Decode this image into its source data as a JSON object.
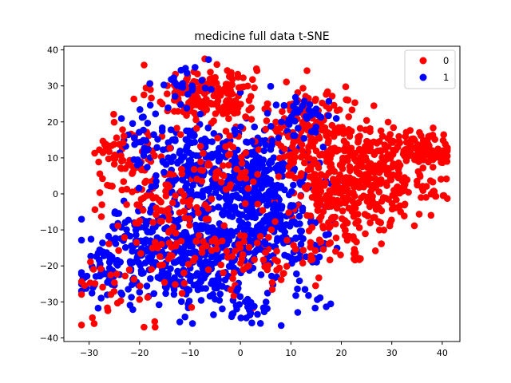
{
  "chart_data": {
    "type": "scatter",
    "title": "medicine full data t-SNE",
    "xlabel": "",
    "ylabel": "",
    "xlim": [
      -35,
      43.5
    ],
    "ylim": [
      -41,
      41
    ],
    "xticks": [
      -30,
      -20,
      -10,
      0,
      10,
      20,
      30,
      40
    ],
    "yticks": [
      -40,
      -30,
      -20,
      -10,
      0,
      10,
      20,
      30,
      40
    ],
    "grid": false,
    "legend_position": "top-right",
    "series": [
      {
        "name": "0",
        "color": "#ff0000",
        "clusters": [
          {
            "cx": -7,
            "cy": 28,
            "sx": 5,
            "sy": 4,
            "n": 190
          },
          {
            "cx": 14,
            "cy": 18,
            "sx": 6,
            "sy": 6,
            "n": 150
          },
          {
            "cx": 25,
            "cy": 5,
            "sx": 6,
            "sy": 7,
            "n": 300
          },
          {
            "cx": 34,
            "cy": 12,
            "sx": 3,
            "sy": 2.5,
            "n": 80
          },
          {
            "cx": 39,
            "cy": 12,
            "sx": 1.5,
            "sy": 2.5,
            "n": 40
          },
          {
            "cx": 38,
            "cy": 1,
            "sx": 2,
            "sy": 1.5,
            "n": 15
          },
          {
            "cx": 16,
            "cy": 2,
            "sx": 4,
            "sy": 7,
            "n": 110
          },
          {
            "cx": -20,
            "cy": 5,
            "sx": 4,
            "sy": 7,
            "n": 80
          },
          {
            "cx": -12,
            "cy": -10,
            "sx": 6,
            "sy": 8,
            "n": 90
          },
          {
            "cx": -22,
            "cy": -25,
            "sx": 5,
            "sy": 5,
            "n": 35
          },
          {
            "cx": 3,
            "cy": -18,
            "sx": 6,
            "sy": 6,
            "n": 60
          },
          {
            "cx": -3,
            "cy": 8,
            "sx": 4,
            "sy": 5,
            "n": 40
          },
          {
            "cx": 22,
            "cy": -12,
            "sx": 4,
            "sy": 4,
            "n": 35
          },
          {
            "cx": -26,
            "cy": 12,
            "sx": 2,
            "sy": 4,
            "n": 25
          }
        ]
      },
      {
        "name": "1",
        "color": "#0000ff",
        "clusters": [
          {
            "cx": 2,
            "cy": 0,
            "sx": 6,
            "sy": 9,
            "n": 420
          },
          {
            "cx": -10,
            "cy": -18,
            "sx": 6,
            "sy": 8,
            "n": 300
          },
          {
            "cx": -22,
            "cy": -15,
            "sx": 4,
            "sy": 6,
            "n": 100
          },
          {
            "cx": -27,
            "cy": -22,
            "sx": 2.5,
            "sy": 3,
            "n": 45
          },
          {
            "cx": -10,
            "cy": 8,
            "sx": 4,
            "sy": 5,
            "n": 110
          },
          {
            "cx": 10,
            "cy": -12,
            "sx": 4,
            "sy": 6,
            "n": 90
          },
          {
            "cx": 13,
            "cy": 22,
            "sx": 3,
            "sy": 3,
            "n": 40
          },
          {
            "cx": -12,
            "cy": 29,
            "sx": 3,
            "sy": 3,
            "n": 25
          },
          {
            "cx": -20,
            "cy": 15,
            "sx": 3,
            "sy": 4,
            "n": 40
          },
          {
            "cx": 14,
            "cy": -28,
            "sx": 2,
            "sy": 2,
            "n": 10
          },
          {
            "cx": 1,
            "cy": -32,
            "sx": 3,
            "sy": 3,
            "n": 30
          }
        ]
      }
    ]
  }
}
